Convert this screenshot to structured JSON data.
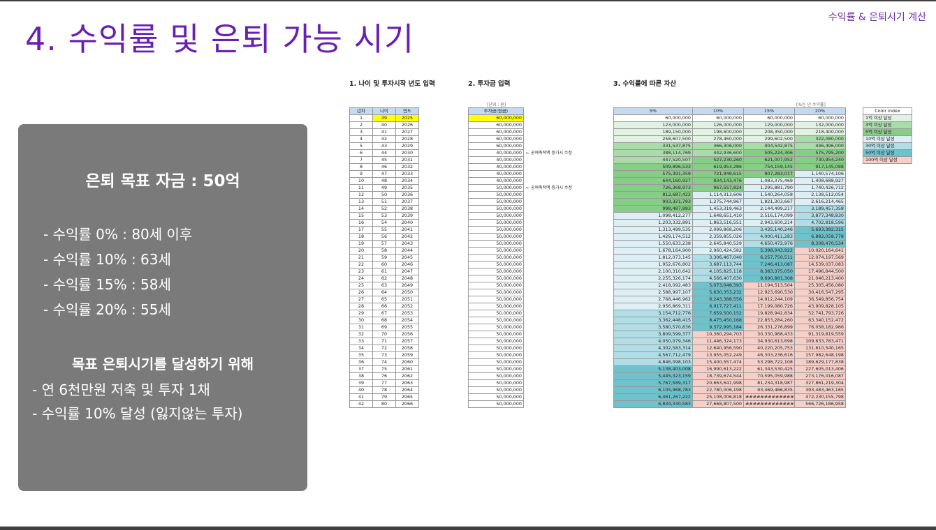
{
  "header": {
    "corner_label": "수익률 & 은퇴시기 계산",
    "title": "4. 수익률 및 은퇴 가능 시기"
  },
  "summary": {
    "goal": "은퇴 목표 자금 : 50억",
    "rates": [
      "- 수익률   0% : 80세 이후",
      "- 수익률 10% : 63세",
      "- 수익률 15% : 58세",
      "- 수익률 20% : 55세"
    ],
    "subtitle": "목표 은퇴시기를 달성하기 위해",
    "actions": [
      "- 연 6천만원 저축 및 투자 1채",
      "- 수익률 10% 달성 (잃지않는 투자)"
    ]
  },
  "section_titles": {
    "s1": "1. 나이 및 투자시작 년도 입력",
    "s2": "2. 투자금 입력",
    "s3": "3. 수익률에 따른 자산"
  },
  "unit_note": "[단위 : 원]",
  "yield_note": "[%는 년 수익률]",
  "table1": {
    "headers": [
      "년차",
      "나이",
      "연도"
    ],
    "rows": [
      [
        "1",
        "39",
        "2025"
      ],
      [
        "2",
        "40",
        "2026"
      ],
      [
        "3",
        "41",
        "2027"
      ],
      [
        "4",
        "42",
        "2028"
      ],
      [
        "5",
        "43",
        "2029"
      ],
      [
        "6",
        "44",
        "2030"
      ],
      [
        "7",
        "45",
        "2031"
      ],
      [
        "8",
        "46",
        "2032"
      ],
      [
        "9",
        "47",
        "2033"
      ],
      [
        "10",
        "48",
        "2034"
      ],
      [
        "11",
        "49",
        "2035"
      ],
      [
        "12",
        "50",
        "2036"
      ],
      [
        "13",
        "51",
        "2037"
      ],
      [
        "14",
        "52",
        "2038"
      ],
      [
        "15",
        "53",
        "2039"
      ],
      [
        "16",
        "54",
        "2040"
      ],
      [
        "17",
        "55",
        "2041"
      ],
      [
        "18",
        "56",
        "2042"
      ],
      [
        "19",
        "57",
        "2043"
      ],
      [
        "20",
        "58",
        "2044"
      ],
      [
        "21",
        "59",
        "2045"
      ],
      [
        "22",
        "60",
        "2046"
      ],
      [
        "23",
        "61",
        "2047"
      ],
      [
        "24",
        "62",
        "2048"
      ],
      [
        "25",
        "63",
        "2049"
      ],
      [
        "26",
        "64",
        "2050"
      ],
      [
        "27",
        "65",
        "2051"
      ],
      [
        "28",
        "66",
        "2052"
      ],
      [
        "29",
        "67",
        "2053"
      ],
      [
        "30",
        "68",
        "2054"
      ],
      [
        "31",
        "69",
        "2055"
      ],
      [
        "32",
        "70",
        "2056"
      ],
      [
        "33",
        "71",
        "2057"
      ],
      [
        "34",
        "72",
        "2058"
      ],
      [
        "35",
        "73",
        "2059"
      ],
      [
        "36",
        "74",
        "2060"
      ],
      [
        "37",
        "75",
        "2061"
      ],
      [
        "38",
        "76",
        "2062"
      ],
      [
        "39",
        "77",
        "2063"
      ],
      [
        "40",
        "78",
        "2064"
      ],
      [
        "41",
        "79",
        "2065"
      ],
      [
        "42",
        "80",
        "2066"
      ]
    ]
  },
  "table2": {
    "header": "투자금(원금)",
    "values": [
      "60,000,000",
      "60,000,000",
      "60,000,000",
      "60,000,000",
      "60,000,000",
      "40,000,000",
      "40,000,000",
      "40,000,000",
      "40,000,000",
      "40,000,000",
      "50,000,000",
      "50,000,000",
      "50,000,000",
      "50,000,000",
      "50,000,000",
      "50,000,000",
      "50,000,000",
      "50,000,000",
      "50,000,000",
      "50,000,000",
      "50,000,000",
      "50,000,000",
      "50,000,000",
      "50,000,000",
      "50,000,000",
      "50,000,000",
      "50,000,000",
      "50,000,000",
      "50,000,000",
      "50,000,000",
      "50,000,000",
      "50,000,000",
      "50,000,000",
      "50,000,000",
      "50,000,000",
      "50,000,000",
      "50,000,000",
      "50,000,000",
      "50,000,000",
      "50,000,000",
      "50,000,000",
      "50,000,000"
    ],
    "notes": [
      {
        "row": 6,
        "text": "← 공여축적액 증가시 수정"
      },
      {
        "row": 11,
        "text": "← 공여축적액 증가시 수정"
      }
    ]
  },
  "table3": {
    "headers": [
      "5%",
      "10%",
      "15%",
      "20%"
    ],
    "rows": [
      [
        "60,000,000",
        "60,000,000",
        "60,000,000",
        "60,000,000"
      ],
      [
        "123,000,000",
        "126,000,000",
        "129,000,000",
        "132,000,000"
      ],
      [
        "189,150,000",
        "198,600,000",
        "208,350,000",
        "218,400,000"
      ],
      [
        "258,607,500",
        "278,460,000",
        "299,602,500",
        "322,080,000"
      ],
      [
        "331,537,875",
        "366,306,000",
        "404,542,875",
        "446,496,000"
      ],
      [
        "388,114,769",
        "442,936,600",
        "505,224,306",
        "575,795,200"
      ],
      [
        "447,520,507",
        "527,230,260",
        "621,007,952",
        "730,954,240"
      ],
      [
        "509,896,533",
        "619,953,286",
        "754,159,145",
        "917,145,088"
      ],
      [
        "575,391,359",
        "721,948,615",
        "907,283,017",
        "1,140,574,106"
      ],
      [
        "644,160,927",
        "834,143,476",
        "1,083,375,469",
        "1,408,688,927"
      ],
      [
        "726,368,973",
        "967,557,824",
        "1,295,881,790",
        "1,740,426,712"
      ],
      [
        "812,687,422",
        "1,114,313,606",
        "1,540,264,058",
        "2,138,512,054"
      ],
      [
        "903,321,793",
        "1,275,744,967",
        "1,821,303,667",
        "2,616,214,465"
      ],
      [
        "998,487,883",
        "1,453,319,463",
        "2,144,499,217",
        "3,189,457,358"
      ],
      [
        "1,098,412,277",
        "1,648,651,410",
        "2,516,174,099",
        "3,877,348,830"
      ],
      [
        "1,203,332,891",
        "1,863,516,551",
        "2,943,600,214",
        "4,702,818,596"
      ],
      [
        "1,313,499,535",
        "2,099,868,206",
        "3,435,140,246",
        "5,693,382,315"
      ],
      [
        "1,429,174,512",
        "2,359,855,026",
        "4,000,411,283",
        "6,882,058,778"
      ],
      [
        "1,550,633,238",
        "2,645,840,529",
        "4,650,472,976",
        "8,308,470,534"
      ],
      [
        "1,678,164,900",
        "2,960,424,582",
        "5,398,043,922",
        "10,020,164,641"
      ],
      [
        "1,812,073,145",
        "3,306,467,040",
        "6,257,750,511",
        "12,074,197,569"
      ],
      [
        "1,952,676,802",
        "3,687,113,744",
        "7,246,413,087",
        "14,539,037,083"
      ],
      [
        "2,100,310,642",
        "4,105,825,118",
        "8,383,375,050",
        "17,496,844,500"
      ],
      [
        "2,255,326,174",
        "4,566,407,630",
        "9,690,881,308",
        "21,046,213,400"
      ],
      [
        "2,418,092,483",
        "5,073,048,393",
        "11,194,513,504",
        "25,305,456,080"
      ],
      [
        "2,588,997,107",
        "5,630,353,232",
        "12,923,690,530",
        "30,416,547,295"
      ],
      [
        "2,768,446,962",
        "6,243,388,556",
        "14,912,244,109",
        "36,549,856,754"
      ],
      [
        "2,956,869,311",
        "6,917,727,411",
        "17,199,080,726",
        "43,909,828,105"
      ],
      [
        "3,154,712,776",
        "7,659,500,152",
        "19,828,942,834",
        "52,741,793,726"
      ],
      [
        "3,362,448,415",
        "8,475,450,168",
        "22,853,284,260",
        "63,340,152,472"
      ],
      [
        "3,580,570,836",
        "9,372,995,184",
        "26,331,276,899",
        "76,058,182,966"
      ],
      [
        "3,809,599,377",
        "10,360,294,703",
        "30,330,968,433",
        "91,319,819,559"
      ],
      [
        "4,050,079,346",
        "11,446,324,173",
        "34,930,613,698",
        "109,633,783,471"
      ],
      [
        "4,302,583,314",
        "12,640,956,590",
        "40,220,205,753",
        "131,610,540,165"
      ],
      [
        "4,567,712,479",
        "13,955,052,249",
        "46,303,236,616",
        "157,982,648,198"
      ],
      [
        "4,846,098,103",
        "15,400,557,474",
        "53,298,722,108",
        "189,629,177,838"
      ],
      [
        "5,138,403,008",
        "16,990,613,222",
        "61,343,530,425",
        "227,605,013,406"
      ],
      [
        "5,445,323,159",
        "18,739,674,544",
        "70,595,059,988",
        "273,176,016,087"
      ],
      [
        "5,767,589,317",
        "20,663,641,998",
        "81,234,318,987",
        "327,861,219,304"
      ],
      [
        "6,105,968,783",
        "22,780,006,198",
        "93,469,466,835",
        "393,483,463,165"
      ],
      [
        "6,461,267,222",
        "25,108,006,818",
        "##############",
        "472,230,155,798"
      ],
      [
        "6,834,330,583",
        "27,668,807,500",
        "##############",
        "566,726,186,958"
      ]
    ]
  },
  "legend": {
    "header": "Color Index",
    "items": [
      {
        "label": "1억 이상 달성",
        "color": "#e2f2e2"
      },
      {
        "label": "3억 이상 달성",
        "color": "#a9dca9"
      },
      {
        "label": "5억 이상 달성",
        "color": "#86cd86"
      },
      {
        "label": "10억 이상 달성",
        "color": "#ddeef4"
      },
      {
        "label": "30억 이상 달성",
        "color": "#b0dde6"
      },
      {
        "label": "50억 이상 달성",
        "color": "#6ec2cc"
      },
      {
        "label": "100억 이상 달성",
        "color": "#f6cfc8"
      }
    ]
  }
}
